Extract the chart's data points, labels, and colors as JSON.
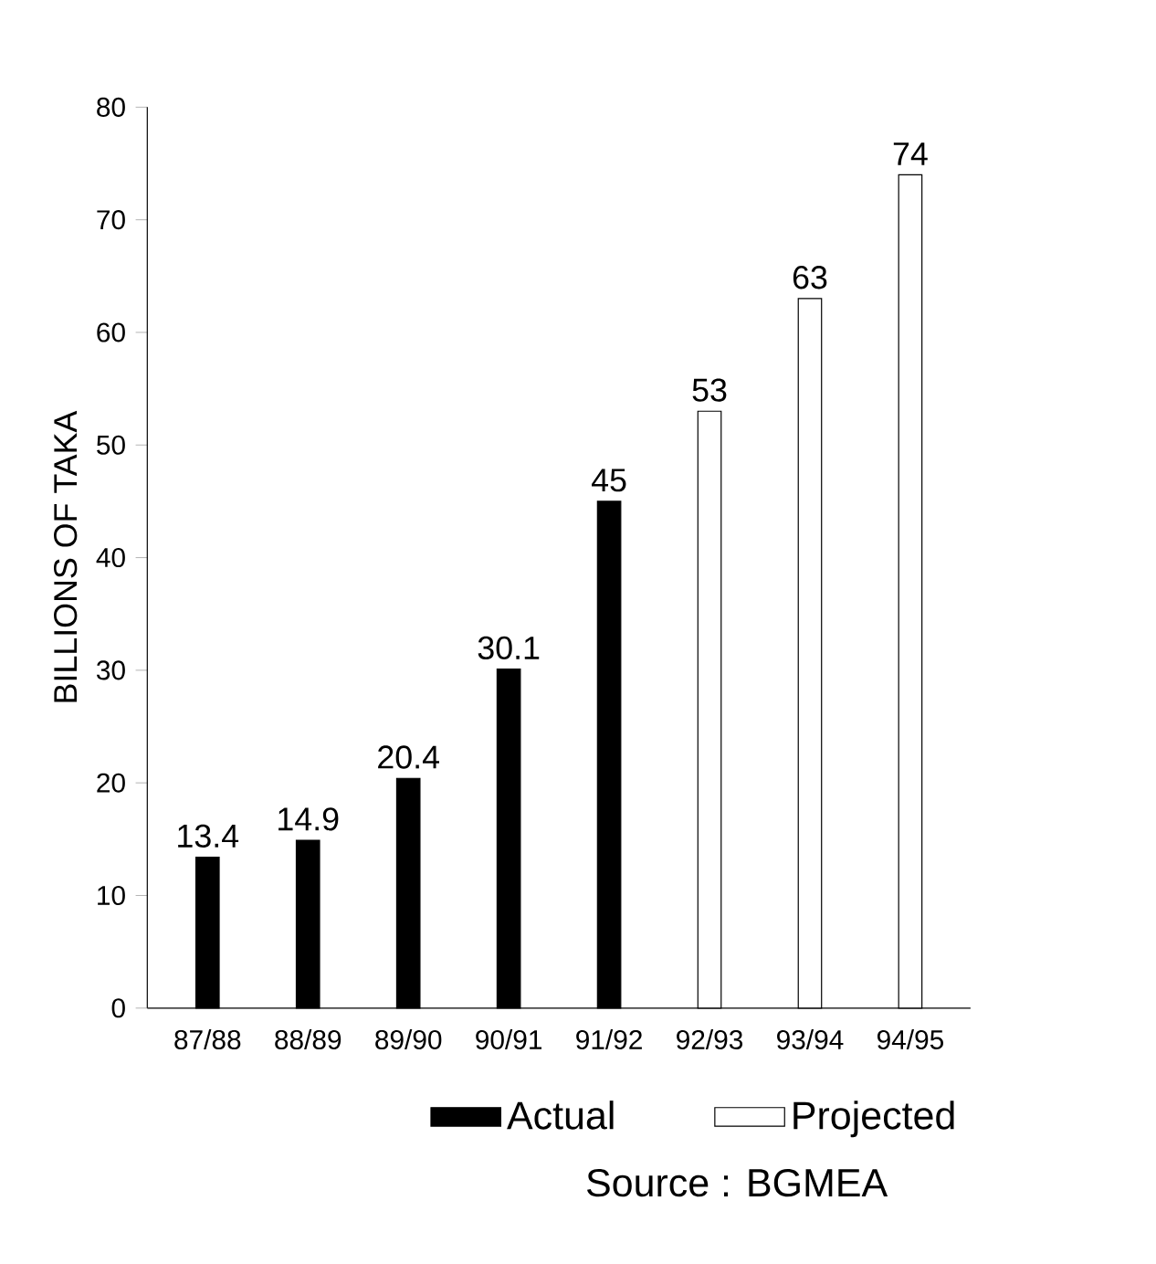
{
  "chart_data": {
    "type": "bar",
    "ylabel": "BILLIONS OF TAKA",
    "categories": [
      "87/88",
      "88/89",
      "89/90",
      "90/91",
      "91/92",
      "92/93",
      "93/94",
      "94/95"
    ],
    "series": [
      {
        "name": "Actual",
        "color": "#000000",
        "values": [
          13.4,
          14.9,
          20.4,
          30.1,
          45,
          null,
          null,
          null
        ]
      },
      {
        "name": "Projected",
        "color": "#ffffff",
        "values": [
          null,
          null,
          null,
          null,
          null,
          53,
          63,
          74
        ]
      }
    ],
    "ylim": [
      0,
      80
    ],
    "yticks": [
      0,
      10,
      20,
      30,
      40,
      50,
      60,
      70,
      80
    ],
    "data_labels": true,
    "legend": "bottom right",
    "grid": false,
    "annotations": [
      "Source : BGMEA"
    ]
  }
}
